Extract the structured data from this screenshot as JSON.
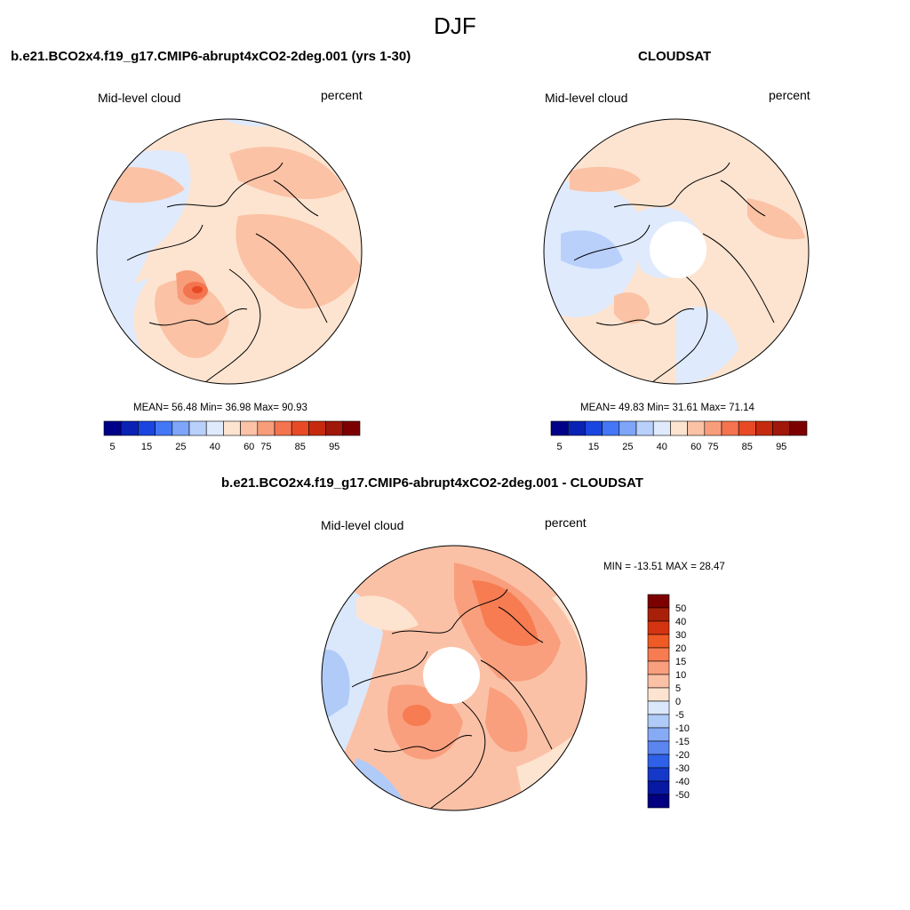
{
  "season": "DJF",
  "left_panel": {
    "title": "b.e21.BCO2x4.f19_g17.CMIP6-abrupt4xCO2-2deg.001 (yrs 1-30)",
    "left_label": "Mid-level cloud",
    "right_label": "percent",
    "stats": "MEAN=  56.48  Min=  36.98  Max=  90.93"
  },
  "right_panel": {
    "title": "CLOUDSAT",
    "left_label": "Mid-level cloud",
    "right_label": "percent",
    "stats": "MEAN=  49.83  Min=  31.61  Max=  71.14"
  },
  "diff_panel": {
    "title": "b.e21.BCO2x4.f19_g17.CMIP6-abrupt4xCO2-2deg.001 - CLOUDSAT",
    "left_label": "Mid-level cloud",
    "right_label": "percent",
    "minmax": "MIN = -13.51 MAX =  28.47"
  },
  "chart_data": [
    {
      "type": "heatmap",
      "projection": "north polar stereographic",
      "title": "b.e21.BCO2x4.f19_g17.CMIP6-abrupt4xCO2-2deg.001 (yrs 1-30)",
      "variable": "Mid-level cloud",
      "units": "percent",
      "mean": 56.48,
      "min": 36.98,
      "max": 90.93,
      "colorbar": {
        "labels": [
          "5",
          "15",
          "25",
          "40",
          "60",
          "75",
          "85",
          "95"
        ],
        "colors": [
          "#000088",
          "#0a22b4",
          "#1b45e0",
          "#4477f5",
          "#7ea5f8",
          "#b9d0fb",
          "#dfeafd",
          "#fde4d0",
          "#fbc2a5",
          "#f89d7a",
          "#f4744f",
          "#e84a26",
          "#c52a0e",
          "#a0180a",
          "#7d0000"
        ]
      }
    },
    {
      "type": "heatmap",
      "projection": "north polar stereographic",
      "title": "CLOUDSAT",
      "variable": "Mid-level cloud",
      "units": "percent",
      "mean": 49.83,
      "min": 31.61,
      "max": 71.14,
      "colorbar": {
        "labels": [
          "5",
          "15",
          "25",
          "40",
          "60",
          "75",
          "85",
          "95"
        ],
        "colors": [
          "#000088",
          "#0a22b4",
          "#1b45e0",
          "#4477f5",
          "#7ea5f8",
          "#b9d0fb",
          "#dfeafd",
          "#fde4d0",
          "#fbc2a5",
          "#f89d7a",
          "#f4744f",
          "#e84a26",
          "#c52a0e",
          "#a0180a",
          "#7d0000"
        ]
      }
    },
    {
      "type": "heatmap",
      "projection": "north polar stereographic",
      "title": "b.e21.BCO2x4.f19_g17.CMIP6-abrupt4xCO2-2deg.001 - CLOUDSAT",
      "variable": "Mid-level cloud",
      "units": "percent",
      "min": -13.51,
      "max": 28.47,
      "colorbar": {
        "labels": [
          "50",
          "40",
          "30",
          "20",
          "15",
          "10",
          "5",
          "0",
          "-5",
          "-10",
          "-15",
          "-20",
          "-30",
          "-40",
          "-50"
        ],
        "colors": [
          "#7d0000",
          "#a8200a",
          "#d53411",
          "#f05a25",
          "#f77c51",
          "#f99f7e",
          "#fbc1a6",
          "#fde4d0",
          "#dbe8fb",
          "#b1cbf8",
          "#87aaf5",
          "#5b86f0",
          "#2f60e8",
          "#1538c8",
          "#0718a2",
          "#000080"
        ]
      }
    }
  ]
}
